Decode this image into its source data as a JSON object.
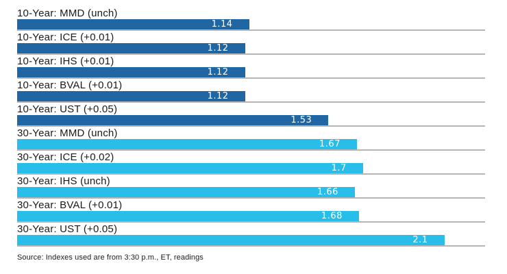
{
  "chart_data": {
    "type": "bar",
    "orientation": "horizontal",
    "title": "",
    "xlabel": "",
    "ylabel": "",
    "xlim": [
      0,
      2.3
    ],
    "grid": "per-row baseline",
    "legend": "none",
    "gridline_color": "#b5b5b5",
    "series_colors": {
      "10-year": "#2066a2",
      "30-year": "#29bde9"
    },
    "rows": [
      {
        "label": "10-Year: MMD (unch)",
        "value": 1.14,
        "value_label": "1.14",
        "series": "10-year"
      },
      {
        "label": "10-Year: ICE (+0.01)",
        "value": 1.12,
        "value_label": "1.12",
        "series": "10-year"
      },
      {
        "label": "10-Year: IHS (+0.01)",
        "value": 1.12,
        "value_label": "1.12",
        "series": "10-year"
      },
      {
        "label": "10-Year: BVAL (+0.01)",
        "value": 1.12,
        "value_label": "1.12",
        "series": "10-year"
      },
      {
        "label": "10-Year: UST (+0.05)",
        "value": 1.53,
        "value_label": "1.53",
        "series": "10-year"
      },
      {
        "label": "30-Year: MMD (unch)",
        "value": 1.67,
        "value_label": "1.67",
        "series": "30-year"
      },
      {
        "label": "30-Year: ICE (+0.02)",
        "value": 1.7,
        "value_label": "1.7",
        "series": "30-year"
      },
      {
        "label": "30-Year: IHS (unch)",
        "value": 1.66,
        "value_label": "1.66",
        "series": "30-year"
      },
      {
        "label": "30-Year: BVAL (+0.01)",
        "value": 1.68,
        "value_label": "1.68",
        "series": "30-year"
      },
      {
        "label": "30-Year: UST (+0.05)",
        "value": 2.1,
        "value_label": "2.1",
        "series": "30-year"
      }
    ]
  },
  "source": {
    "text": "Source: Indexes used are from 3:30 p.m., ET, readings"
  }
}
